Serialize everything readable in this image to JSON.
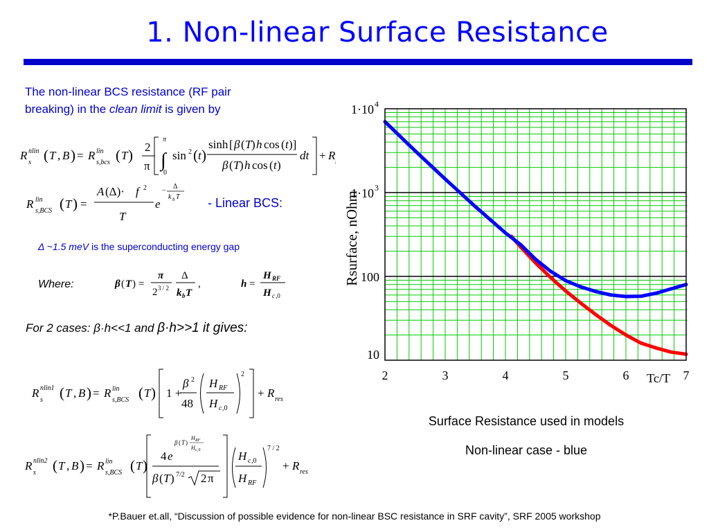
{
  "title": "1. Non-linear Surface Resistance",
  "intro": {
    "line1": "The non-linear BCS resistance (RF pair",
    "line2_pre": "breaking) in the ",
    "line2_em": "clean limit",
    "line2_post": " is given by"
  },
  "linear_bcs_label": "- Linear BCS:",
  "delta_note": {
    "em": "Δ ~1.5 meV",
    "rest": " is the superconducting energy gap"
  },
  "where_label": "Where:",
  "cases": {
    "pre": "For 2 cases: β·h<<1 and ",
    "big": "β·h>>1 it gives:"
  },
  "chart_data": {
    "type": "line",
    "title": "",
    "xlabel": "Tc/T",
    "ylabel": "Rsurface, nOhm",
    "x_ticks": [
      "2",
      "3",
      "4",
      "5",
      "6",
      "7"
    ],
    "y_ticks": [
      "10",
      "100",
      "1·10",
      "1·10"
    ],
    "y_tick_exponents": [
      "",
      "",
      "3",
      "4"
    ],
    "xlim": [
      2,
      7
    ],
    "ylim": [
      10,
      10000
    ],
    "y_scale": "log",
    "grid": true,
    "grid_color": "#00cc00",
    "series": [
      {
        "color": "#ff0000",
        "x": [
          4.1,
          4.25,
          4.5,
          4.75,
          5.0,
          5.25,
          5.5,
          5.75,
          6.0,
          6.25,
          6.5,
          6.75,
          7.0
        ],
        "y": [
          300,
          225,
          145,
          97,
          67,
          48,
          35,
          26,
          20,
          16,
          14,
          12.5,
          11.8
        ]
      },
      {
        "color": "#0000ff",
        "x": [
          2.0,
          2.5,
          3.0,
          3.5,
          4.0,
          4.25,
          4.5,
          4.75,
          5.0,
          5.25,
          5.5,
          5.75,
          6.0,
          6.25,
          6.5,
          6.75,
          7.0
        ],
        "y": [
          7000,
          3150,
          1450,
          680,
          330,
          240,
          160,
          115,
          89,
          75,
          66,
          60,
          57.5,
          58,
          63,
          71,
          80
        ]
      }
    ]
  },
  "captions": {
    "line1": "Surface Resistance used in models",
    "line2": "Non-linear case - blue"
  },
  "footnote": "*P.Bauer et.all, “Discussion of possible evidence for non-linear BSC resistance in SRF cavity”, SRF 2005 workshop"
}
